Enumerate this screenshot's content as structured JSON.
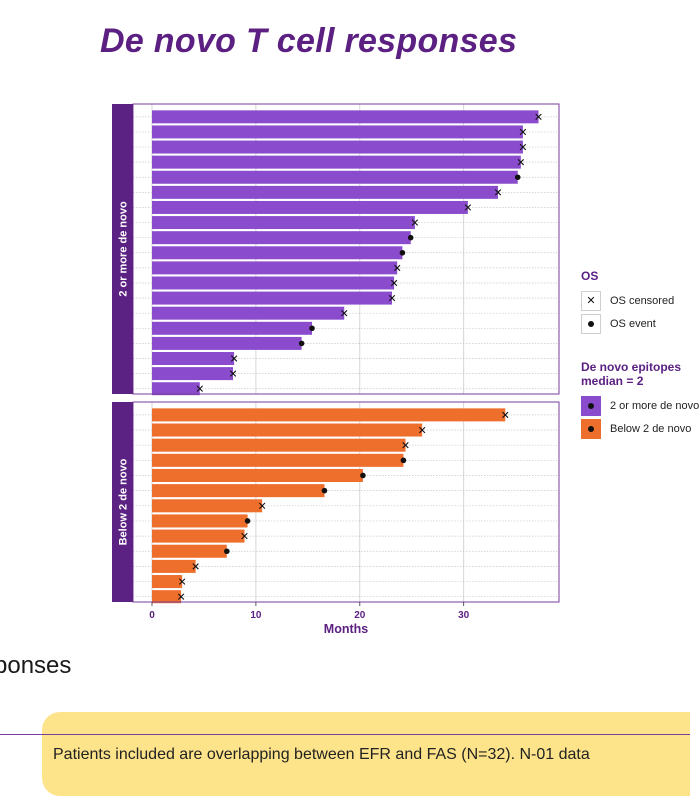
{
  "title": "De novo T cell responses",
  "chart_data": {
    "type": "bar",
    "orientation": "horizontal",
    "xlabel": "Months",
    "xlim": [
      -3.5,
      38.5
    ],
    "xticks": [
      0,
      10,
      20,
      30
    ],
    "grid": true,
    "panels": [
      {
        "name": "2 or more de novo",
        "color": "#8a4ccc",
        "strip_color": "#5c2283",
        "values": [
          37.2,
          35.7,
          35.7,
          35.5,
          35.2,
          33.3,
          30.4,
          25.3,
          24.9,
          24.1,
          23.6,
          23.3,
          23.1,
          18.5,
          15.4,
          14.4,
          7.9,
          7.8,
          4.6
        ],
        "os": [
          "censored",
          "censored",
          "censored",
          "censored",
          "event",
          "censored",
          "censored",
          "censored",
          "event",
          "event",
          "censored",
          "censored",
          "censored",
          "censored",
          "event",
          "event",
          "censored",
          "censored",
          "censored"
        ]
      },
      {
        "name": "Below 2 de novo",
        "color": "#ee6e2c",
        "strip_color": "#5c2283",
        "values": [
          34,
          26,
          24.4,
          24.2,
          20.3,
          16.6,
          10.6,
          9.2,
          8.9,
          7.2,
          4.2,
          2.9,
          2.8
        ],
        "os": [
          "censored",
          "censored",
          "censored",
          "event",
          "event",
          "event",
          "censored",
          "event",
          "censored",
          "event",
          "censored",
          "censored",
          "censored"
        ]
      }
    ],
    "legend": {
      "os_title": "OS",
      "os_items": [
        {
          "label": "OS censored",
          "icon": "cross-icon"
        },
        {
          "label": "OS event",
          "icon": "dot-icon"
        }
      ],
      "epitope_title": "De novo epitopes",
      "epitope_title_2": "median = 2",
      "epitope_items": [
        {
          "label": "2 or more de novo",
          "color": "#8a4ccc"
        },
        {
          "label": "Below 2 de novo",
          "color": "#ee6e2c"
        }
      ]
    }
  },
  "subtitle_fragment": "ponses",
  "footnote": "Patients included are overlapping between EFR and FAS (N=32). N-01 data"
}
